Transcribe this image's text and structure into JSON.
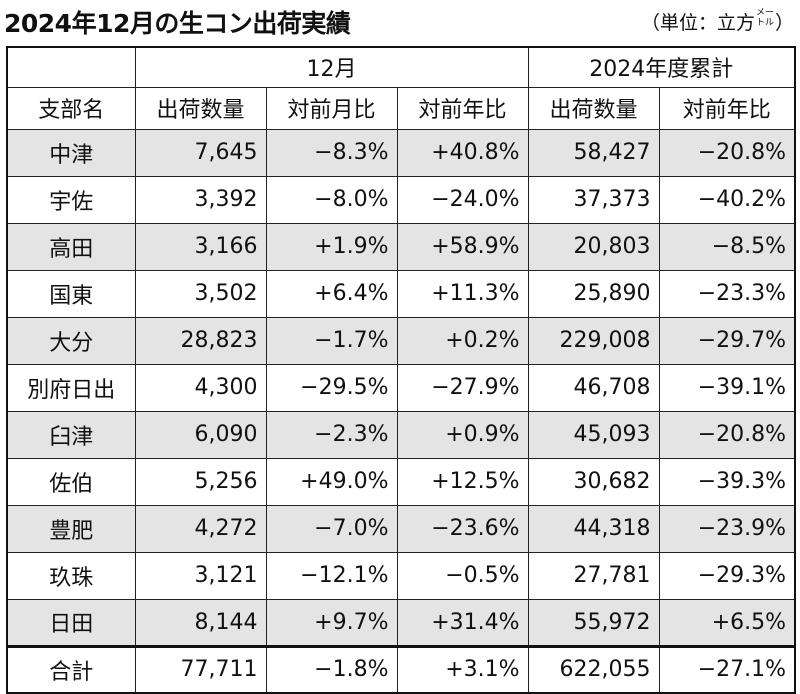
{
  "title": "2024年12月の生コン出荷実績",
  "unit": {
    "open": "（単位：立方",
    "meter_top": "メー",
    "meter_bottom": "トル",
    "close": "）"
  },
  "table": {
    "group_headers": [
      "",
      "12月",
      "2024年度累計"
    ],
    "columns": [
      "支部名",
      "出荷数量",
      "対前月比",
      "対前年比",
      "出荷数量",
      "対前年比"
    ],
    "rows": [
      [
        "中津",
        "7,645",
        "−8.3%",
        "+40.8%",
        "58,427",
        "−20.8%"
      ],
      [
        "宇佐",
        "3,392",
        "−8.0%",
        "−24.0%",
        "37,373",
        "−40.2%"
      ],
      [
        "高田",
        "3,166",
        "+1.9%",
        "+58.9%",
        "20,803",
        "−8.5%"
      ],
      [
        "国東",
        "3,502",
        "+6.4%",
        "+11.3%",
        "25,890",
        "−23.3%"
      ],
      [
        "大分",
        "28,823",
        "−1.7%",
        "+0.2%",
        "229,008",
        "−29.7%"
      ],
      [
        "別府日出",
        "4,300",
        "−29.5%",
        "−27.9%",
        "46,708",
        "−39.1%"
      ],
      [
        "臼津",
        "6,090",
        "−2.3%",
        "+0.9%",
        "45,093",
        "−20.8%"
      ],
      [
        "佐伯",
        "5,256",
        "+49.0%",
        "+12.5%",
        "30,682",
        "−39.3%"
      ],
      [
        "豊肥",
        "4,272",
        "−7.0%",
        "−23.6%",
        "44,318",
        "−23.9%"
      ],
      [
        "玖珠",
        "3,121",
        "−12.1%",
        "−0.5%",
        "27,781",
        "−29.3%"
      ],
      [
        "日田",
        "8,144",
        "+9.7%",
        "+31.4%",
        "55,972",
        "+6.5%"
      ]
    ],
    "total": [
      "合計",
      "77,711",
      "−1.8%",
      "+3.1%",
      "622,055",
      "−27.1%"
    ]
  },
  "colors": {
    "shaded_row": "#e4e4e4",
    "border": "#222222",
    "text": "#111111"
  }
}
